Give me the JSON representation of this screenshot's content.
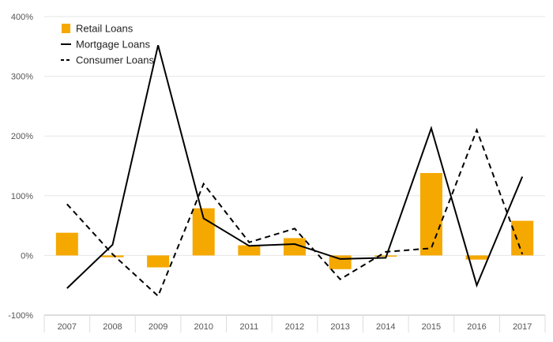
{
  "chart_data": {
    "type": "bar+line",
    "categories": [
      "2007",
      "2008",
      "2009",
      "2010",
      "2011",
      "2012",
      "2013",
      "2014",
      "2015",
      "2016",
      "2017"
    ],
    "series": [
      {
        "name": "Retail Loans",
        "type": "bar",
        "color": "#f5a800",
        "values": [
          38,
          -3,
          -20,
          79,
          17,
          29,
          -23,
          -2,
          138,
          -7,
          58
        ]
      },
      {
        "name": "Mortgage Loans",
        "type": "line",
        "dash": "solid",
        "color": "#000000",
        "values": [
          -55,
          18,
          352,
          62,
          16,
          19,
          -6,
          -4,
          213,
          -50,
          132
        ]
      },
      {
        "name": "Consumer Loans",
        "type": "line",
        "dash": "dashed",
        "color": "#000000",
        "values": [
          86,
          2,
          -68,
          120,
          22,
          45,
          -40,
          6,
          12,
          210,
          2
        ]
      }
    ],
    "y_ticks": [
      -100,
      0,
      100,
      200,
      300,
      400
    ],
    "y_tick_labels": [
      "-100%",
      "0%",
      "100%",
      "200%",
      "300%",
      "400%"
    ],
    "ylim": [
      -100,
      400
    ],
    "legend": {
      "placement": "top-left"
    },
    "grid": "horizontal"
  }
}
